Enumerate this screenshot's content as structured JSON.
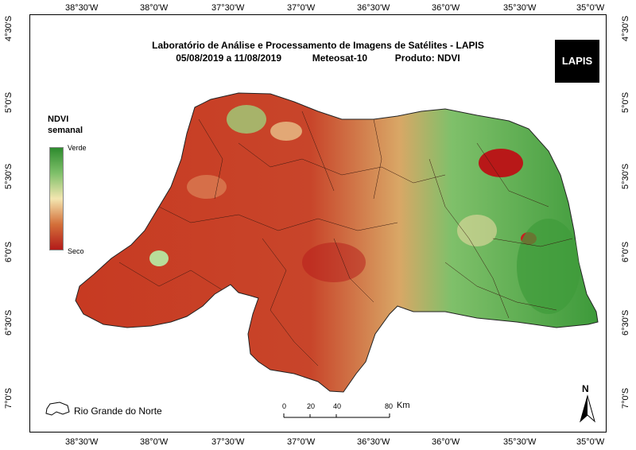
{
  "title": {
    "line1": "Laboratório de Análise e Processamento de Imagens de Satélites - LAPIS",
    "period": "05/08/2019  a  11/08/2019",
    "satellite": "Meteosat-10",
    "product": "Produto: NDVI"
  },
  "logo": {
    "text": "LAPIS"
  },
  "legend": {
    "title_line1": "NDVI",
    "title_line2": "semanal",
    "high_label": "Verde",
    "low_label": "Seco",
    "colors": [
      "#2e8b2e",
      "#7fc06a",
      "#f3e6b0",
      "#d4703a",
      "#b21a1a"
    ]
  },
  "longitude_labels": [
    "38°30'W",
    "38°0'W",
    "37°30'W",
    "37°0'W",
    "36°30'W",
    "36°0'W",
    "35°30'W",
    "35°0'W"
  ],
  "latitude_labels": [
    "4°30'S",
    "5°0'S",
    "5°30'S",
    "6°0'S",
    "6°30'S",
    "7°0'S"
  ],
  "inset_label": "Rio Grande do Norte",
  "scale_bar": {
    "ticks": [
      "0",
      "20",
      "40",
      "80"
    ],
    "unit": "Km"
  },
  "north_arrow": "N"
}
